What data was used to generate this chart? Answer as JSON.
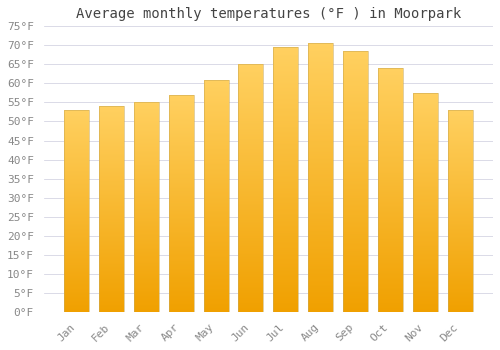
{
  "title": "Average monthly temperatures (°F ) in Moorpark",
  "months": [
    "Jan",
    "Feb",
    "Mar",
    "Apr",
    "May",
    "Jun",
    "Jul",
    "Aug",
    "Sep",
    "Oct",
    "Nov",
    "Dec"
  ],
  "values": [
    53.0,
    54.0,
    55.0,
    57.0,
    61.0,
    65.0,
    69.5,
    70.5,
    68.5,
    64.0,
    57.5,
    53.0
  ],
  "bar_color_bottom": "#F0A000",
  "bar_color_top": "#FFD060",
  "background_color": "#FFFFFF",
  "plot_bg_color": "#FFFFFF",
  "grid_color": "#CCCCDD",
  "text_color": "#888888",
  "title_color": "#444444",
  "ylim": [
    0,
    75
  ],
  "yticks": [
    0,
    5,
    10,
    15,
    20,
    25,
    30,
    35,
    40,
    45,
    50,
    55,
    60,
    65,
    70,
    75
  ],
  "title_fontsize": 10,
  "tick_fontsize": 8,
  "bar_width": 0.72,
  "n_gradient_steps": 200
}
